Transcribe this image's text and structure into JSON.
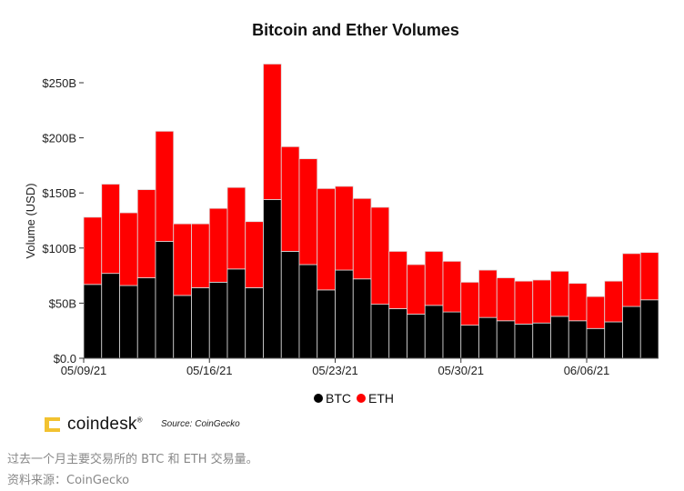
{
  "chart_data": {
    "type": "bar",
    "stacked": true,
    "title": "Bitcoin and Ether Volumes",
    "xlabel": "",
    "ylabel": "Volume (USD)",
    "ylim": [
      0,
      270
    ],
    "yticks": [
      0,
      50,
      100,
      150,
      200,
      250
    ],
    "ytick_labels": [
      "$0.0",
      "$50B",
      "$100B",
      "$150B",
      "$200B",
      "$250B"
    ],
    "xtick_labels": [
      "05/09/21",
      "05/16/21",
      "05/23/21",
      "05/30/21",
      "06/06/21"
    ],
    "xtick_indices": [
      0,
      7,
      14,
      21,
      28
    ],
    "categories": [
      "05/09/21",
      "05/10/21",
      "05/11/21",
      "05/12/21",
      "05/13/21",
      "05/14/21",
      "05/15/21",
      "05/16/21",
      "05/17/21",
      "05/18/21",
      "05/19/21",
      "05/20/21",
      "05/21/21",
      "05/22/21",
      "05/23/21",
      "05/24/21",
      "05/25/21",
      "05/26/21",
      "05/27/21",
      "05/28/21",
      "05/29/21",
      "05/30/21",
      "05/31/21",
      "06/01/21",
      "06/02/21",
      "06/03/21",
      "06/04/21",
      "06/05/21",
      "06/06/21",
      "06/07/21",
      "06/08/21",
      "06/09/21"
    ],
    "series": [
      {
        "name": "BTC",
        "color": "#000000",
        "values": [
          67,
          77,
          66,
          73,
          106,
          57,
          64,
          69,
          81,
          64,
          144,
          97,
          85,
          62,
          80,
          72,
          49,
          45,
          40,
          48,
          42,
          30,
          37,
          34,
          31,
          32,
          38,
          34,
          27,
          33,
          47,
          53
        ]
      },
      {
        "name": "ETH",
        "color": "#ff0000",
        "values": [
          61,
          81,
          66,
          80,
          100,
          65,
          58,
          67,
          74,
          60,
          123,
          95,
          96,
          92,
          76,
          73,
          88,
          52,
          45,
          49,
          46,
          39,
          43,
          39,
          39,
          39,
          41,
          34,
          29,
          37,
          48,
          43
        ]
      }
    ],
    "grid": false,
    "legend_position": "bottom"
  },
  "branding": {
    "logo": "coindesk",
    "source": "Source: CoinGecko"
  },
  "caption": {
    "line1": "过去一个月主要交易所的 BTC 和 ETH 交易量。",
    "line2": "资料来源：CoinGecko"
  }
}
